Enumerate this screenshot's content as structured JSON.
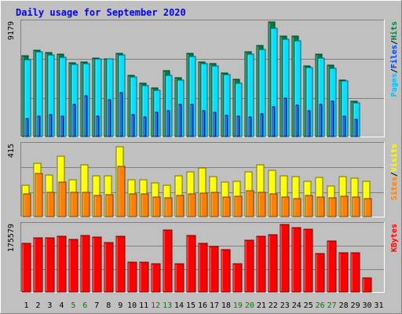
{
  "chart_data": {
    "type": "bar",
    "title": "Daily usage for September 2020",
    "categories": [
      "1",
      "2",
      "3",
      "4",
      "5",
      "6",
      "7",
      "8",
      "9",
      "10",
      "11",
      "12",
      "13",
      "14",
      "15",
      "16",
      "17",
      "18",
      "19",
      "20",
      "21",
      "22",
      "23",
      "24",
      "25",
      "26",
      "27",
      "28",
      "29",
      "30",
      "31"
    ],
    "weekend_days": [
      "5",
      "6",
      "12",
      "13",
      "19",
      "20",
      "26",
      "27"
    ],
    "colors": {
      "background": "#c0c0c0",
      "title": "#0000ff",
      "hits": "#008040",
      "files": "#00e0ff",
      "pages": "#0040ff",
      "visits": "#ffff00",
      "sites": "#ff8000",
      "kbytes": "#ff0000",
      "weekend_label": "#008000",
      "label_sep": "#000000"
    },
    "panels": [
      {
        "name": "hits-files-pages",
        "ymax_label": "9179",
        "ylim": [
          0,
          9179
        ],
        "side_label": [
          {
            "text": "Pages",
            "color": "#00c0ff"
          },
          {
            "text": "/",
            "color": "#000000"
          },
          {
            "text": "Files",
            "color": "#0040ff"
          },
          {
            "text": "/",
            "color": "#000000"
          },
          {
            "text": "Hits",
            "color": "#008040"
          }
        ],
        "series": [
          {
            "name": "Hits",
            "values": [
              6450,
              6900,
              6750,
              6600,
              5900,
              5950,
              6300,
              6250,
              6650,
              4900,
              4300,
              3900,
              5300,
              4700,
              6650,
              5950,
              5850,
              5100,
              4600,
              6800,
              7300,
              9150,
              8050,
              8050,
              5650,
              6600,
              5750,
              4550,
              2800,
              null,
              null
            ]
          },
          {
            "name": "Files",
            "values": [
              6150,
              6800,
              6550,
              6350,
              5800,
              5850,
              6200,
              6200,
              6550,
              4800,
              4100,
              3700,
              4900,
              4550,
              6400,
              5850,
              5650,
              4950,
              4300,
              6600,
              7000,
              8650,
              7800,
              7700,
              5550,
              6300,
              5500,
              4450,
              2700,
              null,
              null
            ]
          },
          {
            "name": "Pages",
            "values": [
              1450,
              1650,
              1750,
              1650,
              2550,
              3300,
              1650,
              2950,
              3550,
              1750,
              1600,
              1950,
              2100,
              2550,
              2600,
              2100,
              1950,
              1700,
              1650,
              1600,
              1850,
              2400,
              3050,
              2500,
              2050,
              2600,
              2850,
              1650,
              1400,
              null,
              null
            ]
          }
        ]
      },
      {
        "name": "visits-sites",
        "ymax_label": "415",
        "ylim": [
          0,
          415
        ],
        "side_label": [
          {
            "text": "Sites",
            "color": "#ff8000"
          },
          {
            "text": "/",
            "color": "#000000"
          },
          {
            "text": "Visits",
            "color": "#ffff00"
          }
        ],
        "series": [
          {
            "name": "Visits",
            "values": [
              182,
              307,
              240,
              346,
              214,
              296,
              235,
              235,
              400,
              212,
              210,
              195,
              182,
              236,
              258,
              280,
              230,
              200,
              205,
              258,
              297,
              266,
              235,
              230,
              205,
              224,
              176,
              230,
              220,
              204,
              null
            ]
          },
          {
            "name": "Sites",
            "values": [
              132,
              250,
              138,
              198,
              138,
              138,
              122,
              127,
              288,
              130,
              130,
              112,
              108,
              120,
              130,
              136,
              140,
              112,
              118,
              148,
              142,
              130,
              112,
              102,
              120,
              112,
              110,
              118,
              112,
              102,
              null
            ]
          }
        ]
      },
      {
        "name": "kbytes",
        "ymax_label": "175579",
        "ylim": [
          0,
          175579
        ],
        "side_label": [
          {
            "text": "KBytes",
            "color": "#ff0000"
          }
        ],
        "series": [
          {
            "name": "KBytes",
            "values": [
              127000,
              141000,
              141000,
              144000,
              136000,
              147000,
              143000,
              128000,
              144000,
              77000,
              77000,
              73000,
              161000,
              74000,
              147000,
              127000,
              119000,
              111000,
              74000,
              134000,
              144000,
              150000,
              176000,
              167000,
              163000,
              100000,
              133000,
              102000,
              102000,
              36000,
              null
            ]
          }
        ]
      }
    ]
  }
}
